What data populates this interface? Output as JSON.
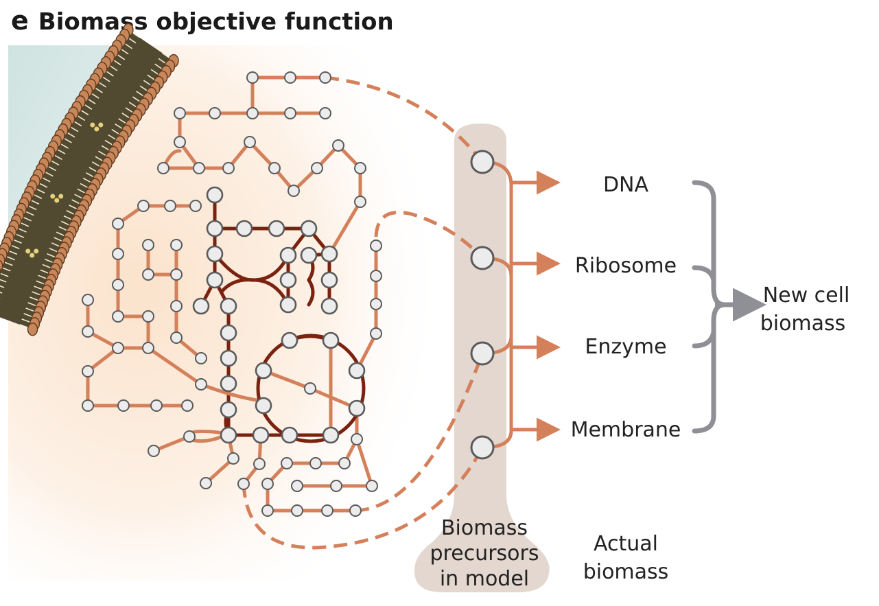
{
  "panel_letter": "e",
  "title": "Biomass objective function",
  "outputs": [
    "DNA",
    "Ribosome",
    "Enzyme",
    "Membrane"
  ],
  "result_lines": [
    "New cell",
    "biomass"
  ],
  "precursors_lines": [
    "Biomass",
    "precursors",
    "in model"
  ],
  "actual_lines": [
    "Actual",
    "biomass"
  ],
  "colors": {
    "light_edge": "#d4805a",
    "dark_edge": "#7a2210",
    "node_fill": "#ececec",
    "node_stroke": "#5a5a5a",
    "column": "#e3d7cf",
    "bracket": "#8f8f96",
    "membrane": "#524a30",
    "membrane_head": "#c98658"
  }
}
